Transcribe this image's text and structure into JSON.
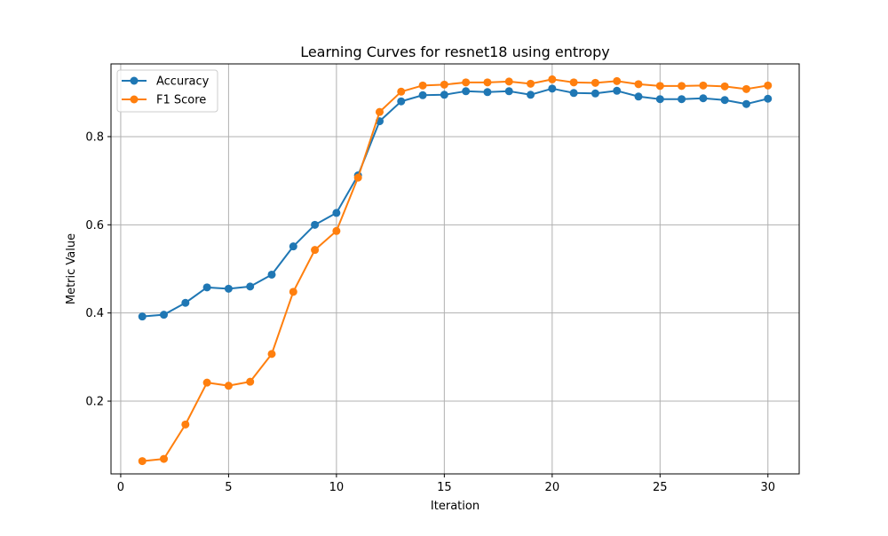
{
  "chart_data": {
    "type": "line",
    "title": "Learning Curves for resnet18 using entropy",
    "xlabel": "Iteration",
    "ylabel": "Metric Value",
    "xlim": [
      -0.45,
      31.45
    ],
    "ylim": [
      0.035,
      0.965
    ],
    "xticks": [
      0,
      5,
      10,
      15,
      20,
      25,
      30
    ],
    "yticks": [
      0.2,
      0.4,
      0.6,
      0.8
    ],
    "xtick_labels": [
      "0",
      "5",
      "10",
      "15",
      "20",
      "25",
      "30"
    ],
    "ytick_labels": [
      "0.2",
      "0.4",
      "0.6",
      "0.8"
    ],
    "grid": true,
    "legend_position": "top-left",
    "x": [
      1,
      2,
      3,
      4,
      5,
      6,
      7,
      8,
      9,
      10,
      11,
      12,
      13,
      14,
      15,
      16,
      17,
      18,
      19,
      20,
      21,
      22,
      23,
      24,
      25,
      26,
      27,
      28,
      29,
      30
    ],
    "series": [
      {
        "name": "Accuracy",
        "color": "#1f77b4",
        "values": [
          0.392,
          0.396,
          0.423,
          0.458,
          0.455,
          0.46,
          0.487,
          0.551,
          0.6,
          0.627,
          0.712,
          0.835,
          0.88,
          0.894,
          0.895,
          0.903,
          0.901,
          0.903,
          0.895,
          0.909,
          0.899,
          0.898,
          0.904,
          0.891,
          0.885,
          0.885,
          0.887,
          0.883,
          0.874,
          0.886
        ]
      },
      {
        "name": "F1 Score",
        "color": "#ff7f0e",
        "values": [
          0.064,
          0.069,
          0.147,
          0.242,
          0.235,
          0.244,
          0.307,
          0.448,
          0.543,
          0.586,
          0.707,
          0.856,
          0.902,
          0.916,
          0.918,
          0.923,
          0.923,
          0.925,
          0.92,
          0.93,
          0.923,
          0.922,
          0.926,
          0.919,
          0.915,
          0.915,
          0.916,
          0.914,
          0.908,
          0.916
        ]
      }
    ]
  }
}
